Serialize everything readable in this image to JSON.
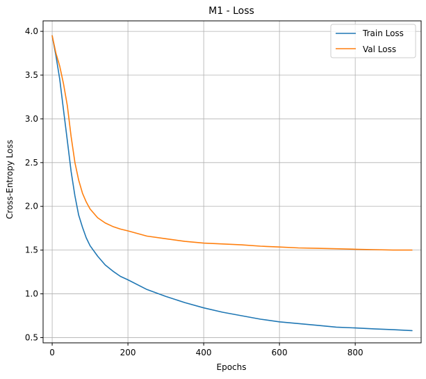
{
  "chart_data": {
    "type": "line",
    "title": "M1 - Loss",
    "xlabel": "Epochs",
    "ylabel": "Cross-Entropy Loss",
    "xlim": [
      -24,
      974
    ],
    "ylim": [
      0.44,
      4.12
    ],
    "xticks": [
      0,
      200,
      400,
      600,
      800
    ],
    "yticks": [
      0.5,
      1.0,
      1.5,
      2.0,
      2.5,
      3.0,
      3.5,
      4.0
    ],
    "xtick_labels": [
      "0",
      "200",
      "400",
      "600",
      "800"
    ],
    "ytick_labels": [
      "0.5",
      "1.0",
      "1.5",
      "2.0",
      "2.5",
      "3.0",
      "3.5",
      "4.0"
    ],
    "grid": true,
    "legend_position": "top-right",
    "series": [
      {
        "name": "Train Loss",
        "color": "#1f77b4",
        "x": [
          0,
          10,
          20,
          30,
          40,
          50,
          60,
          70,
          80,
          90,
          100,
          120,
          140,
          160,
          180,
          200,
          250,
          300,
          350,
          400,
          450,
          500,
          550,
          600,
          650,
          700,
          750,
          800,
          850,
          900,
          950
        ],
        "y": [
          3.95,
          3.72,
          3.45,
          3.1,
          2.75,
          2.4,
          2.12,
          1.9,
          1.76,
          1.64,
          1.55,
          1.43,
          1.33,
          1.26,
          1.2,
          1.16,
          1.05,
          0.97,
          0.9,
          0.84,
          0.79,
          0.75,
          0.71,
          0.68,
          0.66,
          0.64,
          0.62,
          0.61,
          0.6,
          0.59,
          0.58
        ]
      },
      {
        "name": "Val Loss",
        "color": "#ff7f0e",
        "x": [
          0,
          10,
          20,
          30,
          40,
          50,
          60,
          70,
          80,
          90,
          100,
          120,
          140,
          160,
          180,
          200,
          250,
          300,
          350,
          400,
          450,
          500,
          550,
          600,
          650,
          700,
          750,
          800,
          850,
          900,
          950
        ],
        "y": [
          3.95,
          3.75,
          3.6,
          3.4,
          3.15,
          2.8,
          2.5,
          2.3,
          2.15,
          2.05,
          1.97,
          1.87,
          1.81,
          1.77,
          1.74,
          1.72,
          1.66,
          1.63,
          1.6,
          1.58,
          1.57,
          1.56,
          1.545,
          1.535,
          1.525,
          1.52,
          1.515,
          1.51,
          1.505,
          1.5,
          1.5
        ]
      }
    ]
  }
}
